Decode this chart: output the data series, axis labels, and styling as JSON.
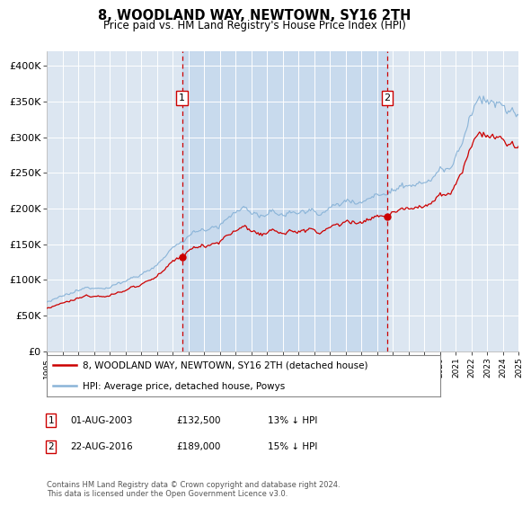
{
  "title": "8, WOODLAND WAY, NEWTOWN, SY16 2TH",
  "subtitle": "Price paid vs. HM Land Registry's House Price Index (HPI)",
  "hpi_label": "HPI: Average price, detached house, Powys",
  "property_label": "8, WOODLAND WAY, NEWTOWN, SY16 2TH (detached house)",
  "hpi_color": "#8ab4d8",
  "property_color": "#cc0000",
  "vline_color": "#cc0000",
  "bg_color": "#dce6f1",
  "highlight_color": "#c8d8ec",
  "transaction1": {
    "date_label": "01-AUG-2003",
    "price": 132500,
    "pct": "13% ↓ HPI",
    "year": 2003.583
  },
  "transaction2": {
    "date_label": "22-AUG-2016",
    "price": 189000,
    "pct": "15% ↓ HPI",
    "year": 2016.639
  },
  "ylim": [
    0,
    420000
  ],
  "yticks": [
    0,
    50000,
    100000,
    150000,
    200000,
    250000,
    300000,
    350000,
    400000
  ],
  "ytick_labels": [
    "£0",
    "£50K",
    "£100K",
    "£150K",
    "£200K",
    "£250K",
    "£300K",
    "£350K",
    "£400K"
  ],
  "footer": "Contains HM Land Registry data © Crown copyright and database right 2024.\nThis data is licensed under the Open Government Licence v3.0.",
  "start_year": 1995,
  "end_year": 2025
}
